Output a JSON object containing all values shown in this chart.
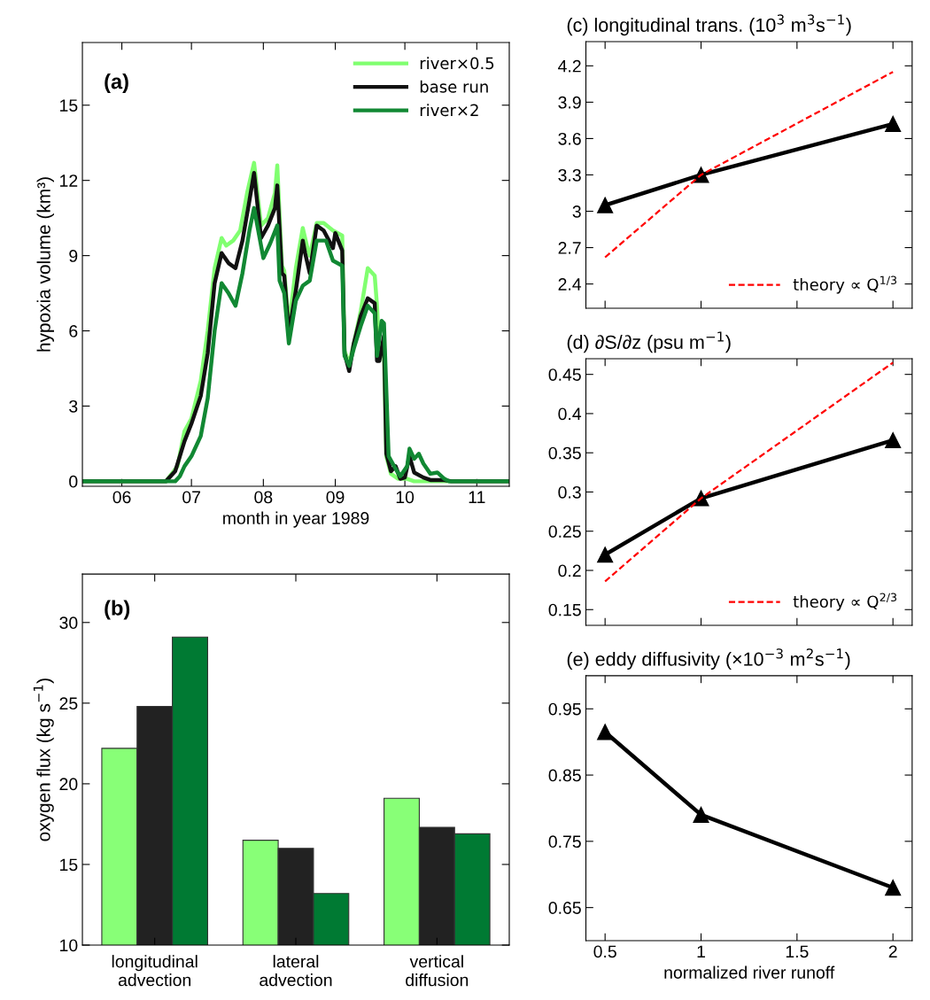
{
  "chart_data": [
    {
      "type": "line",
      "annotations": [
        "(a)"
      ],
      "xlabel": "month in year 1989",
      "ylabel": "hypoxia volume (km³)",
      "xlim": [
        "1989-05-15",
        "1989-11-15"
      ],
      "ylim": [
        -0.2,
        17.5
      ],
      "xticks": [
        {
          "value": "1989-06-01",
          "label": "06"
        },
        {
          "value": "1989-07-01",
          "label": "07"
        },
        {
          "value": "1989-08-01",
          "label": "08"
        },
        {
          "value": "1989-09-01",
          "label": "09"
        },
        {
          "value": "1989-10-01",
          "label": "10"
        },
        {
          "value": "1989-11-01",
          "label": "11"
        }
      ],
      "yticks": [
        0,
        3,
        6,
        9,
        12,
        15
      ],
      "legend": "top right",
      "series": [
        {
          "name": "river×0.5",
          "color": "#80ff70",
          "x": [
            "1989-05-15",
            "1989-06-20",
            "1989-06-25",
            "1989-06-28",
            "1989-07-01",
            "1989-07-05",
            "1989-07-08",
            "1989-07-11",
            "1989-07-14",
            "1989-07-16",
            "1989-07-19",
            "1989-07-22",
            "1989-07-25",
            "1989-07-28",
            "1989-07-31",
            "1989-08-03",
            "1989-08-06",
            "1989-08-07",
            "1989-08-09",
            "1989-08-10",
            "1989-08-12",
            "1989-08-15",
            "1989-08-18",
            "1989-08-20",
            "1989-08-21",
            "1989-08-24",
            "1989-08-27",
            "1989-08-31",
            "1989-09-04",
            "1989-09-05",
            "1989-09-07",
            "1989-09-09",
            "1989-09-12",
            "1989-09-15",
            "1989-09-18",
            "1989-09-19",
            "1989-09-20",
            "1989-09-22",
            "1989-09-23",
            "1989-09-25",
            "1989-09-28",
            "1989-10-02",
            "1989-10-05",
            "1989-11-15"
          ],
          "values": [
            0,
            0,
            0.6,
            2.0,
            2.5,
            4.0,
            6.0,
            8.5,
            9.7,
            9.4,
            9.6,
            10.0,
            11.5,
            12.7,
            10.2,
            10.5,
            11.5,
            12.6,
            8.6,
            8.4,
            6.2,
            8.5,
            10.1,
            9.3,
            9.0,
            10.3,
            10.3,
            10.0,
            9.8,
            5.2,
            4.7,
            5.5,
            6.8,
            8.5,
            8.2,
            7.0,
            5.0,
            5.0,
            1.0,
            0.3,
            0.1,
            0.1,
            0,
            0
          ]
        },
        {
          "name": "base run",
          "color": "#111111",
          "x": [
            "1989-05-15",
            "1989-06-20",
            "1989-06-24",
            "1989-06-26",
            "1989-06-28",
            "1989-07-01",
            "1989-07-05",
            "1989-07-08",
            "1989-07-11",
            "1989-07-14",
            "1989-07-17",
            "1989-07-20",
            "1989-07-23",
            "1989-07-26",
            "1989-07-28",
            "1989-07-31",
            "1989-08-03",
            "1989-08-06",
            "1989-08-07",
            "1989-08-09",
            "1989-08-10",
            "1989-08-12",
            "1989-08-15",
            "1989-08-18",
            "1989-08-19",
            "1989-08-21",
            "1989-08-24",
            "1989-08-27",
            "1989-08-31",
            "1989-09-01",
            "1989-09-04",
            "1989-09-05",
            "1989-09-07",
            "1989-09-09",
            "1989-09-12",
            "1989-09-15",
            "1989-09-18",
            "1989-09-19",
            "1989-09-20",
            "1989-09-22",
            "1989-09-23",
            "1989-09-25",
            "1989-09-27",
            "1989-09-29",
            "1989-10-01",
            "1989-10-03",
            "1989-10-05",
            "1989-10-09",
            "1989-10-12",
            "1989-10-18",
            "1989-10-21",
            "1989-11-15"
          ],
          "values": [
            0,
            0,
            0.4,
            1.0,
            1.6,
            2.3,
            3.4,
            5.1,
            7.9,
            9.1,
            8.7,
            8.5,
            9.6,
            11.2,
            12.3,
            9.7,
            10.2,
            10.9,
            11.8,
            8.3,
            8.2,
            5.9,
            7.6,
            9.6,
            9.1,
            8.3,
            10.2,
            10.0,
            9.3,
            9.9,
            9.2,
            5.1,
            4.4,
            5.5,
            6.6,
            7.3,
            7.1,
            4.8,
            4.8,
            5.8,
            1.1,
            0.4,
            0.6,
            0.1,
            0.15,
            1.0,
            0.35,
            0.15,
            0.05,
            0.05,
            0,
            0
          ]
        },
        {
          "name": "river×2",
          "color": "#118833",
          "x": [
            "1989-05-15",
            "1989-06-24",
            "1989-06-26",
            "1989-06-28",
            "1989-07-01",
            "1989-07-05",
            "1989-07-08",
            "1989-07-11",
            "1989-07-14",
            "1989-07-17",
            "1989-07-20",
            "1989-07-23",
            "1989-07-26",
            "1989-07-28",
            "1989-08-01",
            "1989-08-04",
            "1989-08-07",
            "1989-08-08",
            "1989-08-10",
            "1989-08-12",
            "1989-08-15",
            "1989-08-18",
            "1989-08-21",
            "1989-08-24",
            "1989-08-28",
            "1989-08-31",
            "1989-09-04",
            "1989-09-05",
            "1989-09-07",
            "1989-09-09",
            "1989-09-12",
            "1989-09-15",
            "1989-09-18",
            "1989-09-19",
            "1989-09-21",
            "1989-09-22",
            "1989-09-24",
            "1989-09-27",
            "1989-09-29",
            "1989-10-02",
            "1989-10-03",
            "1989-10-05",
            "1989-10-07",
            "1989-10-09",
            "1989-10-12",
            "1989-10-15",
            "1989-10-18",
            "1989-10-20",
            "1989-11-15"
          ],
          "values": [
            0,
            0,
            0.2,
            0.6,
            1.0,
            1.8,
            3.3,
            6.0,
            7.9,
            7.5,
            7.0,
            8.3,
            10.0,
            10.9,
            8.9,
            9.5,
            10.2,
            8.0,
            7.5,
            5.5,
            7.2,
            7.8,
            8.0,
            9.6,
            9.6,
            8.8,
            8.6,
            5.0,
            4.6,
            5.3,
            6.2,
            7.0,
            6.7,
            5.0,
            6.4,
            6.3,
            1.0,
            0.5,
            0.2,
            0.6,
            1.3,
            0.9,
            1.1,
            0.7,
            0.3,
            0.35,
            0.1,
            0,
            0
          ]
        }
      ]
    },
    {
      "type": "bar",
      "annotations": [
        "(b)"
      ],
      "ylabel": "oxygen flux (kg s$^{−1}$)",
      "categories": [
        "longitudinal\nadvection",
        "lateral\nadvection",
        "vertical\ndiffusion"
      ],
      "ylim": [
        10,
        33
      ],
      "yticks": [
        10,
        15,
        20,
        25,
        30
      ],
      "series": [
        {
          "color": "#88ff77",
          "values": [
            22.2,
            16.5,
            19.1
          ]
        },
        {
          "color": "#222222",
          "values": [
            24.8,
            16.0,
            17.3
          ]
        },
        {
          "color": "#007a33",
          "values": [
            29.1,
            13.2,
            16.9
          ]
        }
      ]
    },
    {
      "type": "line",
      "title": "(c) longitudinal trans. (10$^{3}$ m$^{3}$s$^{−1}$)",
      "xlim": [
        0.4,
        2.1
      ],
      "ylim": [
        2.2,
        4.4
      ],
      "xticks": [
        {
          "value": 0.5,
          "label": null
        },
        {
          "value": 1,
          "label": null
        },
        {
          "value": 1.5,
          "label": null
        },
        {
          "value": 2,
          "label": null
        }
      ],
      "yticks": [
        2.4,
        2.7,
        3,
        3.3,
        3.6,
        3.9,
        4.2
      ],
      "tick_labels": "y",
      "legend": "bottom right",
      "series": [
        {
          "color": "#000000",
          "marker": "triangle",
          "line_style": "solid",
          "x": [
            0.5,
            1,
            2
          ],
          "values": [
            3.05,
            3.3,
            3.72
          ]
        },
        {
          "name": "theory ∝ Q$^{1/3}$",
          "color": "#ff0000",
          "marker": "none",
          "line_style": "dashed",
          "x": [
            0.5,
            1,
            2
          ],
          "values": [
            2.62,
            3.3,
            4.15
          ]
        }
      ]
    },
    {
      "type": "line",
      "title": "(d) ∂S/∂z (psu m$^{−1}$)",
      "xlim": [
        0.4,
        2.1
      ],
      "ylim": [
        0.13,
        0.47
      ],
      "xticks": [
        {
          "value": 0.5,
          "label": null
        },
        {
          "value": 1,
          "label": null
        },
        {
          "value": 1.5,
          "label": null
        },
        {
          "value": 2,
          "label": null
        }
      ],
      "yticks": [
        0.15,
        0.2,
        0.25,
        0.3,
        0.35,
        0.4,
        0.45
      ],
      "tick_labels": "y",
      "legend": "bottom right",
      "series": [
        {
          "color": "#000000",
          "marker": "triangle",
          "line_style": "solid",
          "x": [
            0.5,
            1,
            2
          ],
          "values": [
            0.22,
            0.292,
            0.366
          ]
        },
        {
          "name": "theory ∝ Q$^{2/3}$",
          "color": "#ff0000",
          "marker": "none",
          "line_style": "dashed",
          "x": [
            0.5,
            1,
            2
          ],
          "values": [
            0.186,
            0.292,
            0.465
          ]
        }
      ]
    },
    {
      "type": "line",
      "title": "(e) eddy diffusivity (×10$^{−3}$ m$^{2}$s$^{−1}$)",
      "xlabel": "normalized river runoff",
      "xlim": [
        0.4,
        2.1
      ],
      "ylim": [
        0.6,
        1.0
      ],
      "xticks": [
        0.5,
        1,
        1.5,
        2
      ],
      "yticks": [
        0.65,
        0.75,
        0.85,
        0.95
      ],
      "series": [
        {
          "color": "#000000",
          "marker": "triangle",
          "line_style": "solid",
          "x": [
            0.5,
            1,
            2
          ],
          "values": [
            0.915,
            0.79,
            0.68
          ]
        }
      ]
    }
  ]
}
